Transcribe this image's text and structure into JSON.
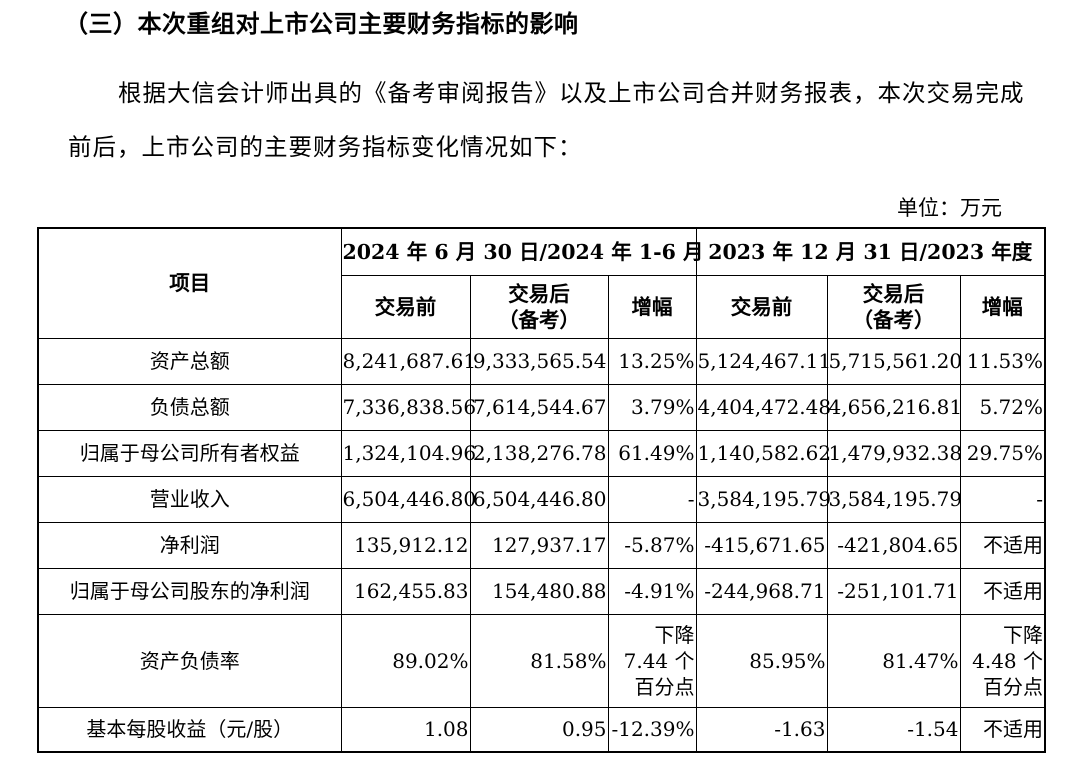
{
  "heading": "（三）本次重组对上市公司主要财务指标的影响",
  "paragraph": "根据大信会计师出具的《备考审阅报告》以及上市公司合并财务报表，本次交易完成前后，上市公司的主要财务指标变化情况如下：",
  "unit_label": "单位：万元",
  "table": {
    "item_header": "项目",
    "period_2024": "2024 年 6 月 30 日/2024 年 1-6 月",
    "period_2023": "2023 年 12 月 31 日/2023 年度",
    "col_before": "交易前",
    "col_after_l1": "交易后",
    "col_after_l2": "（备考）",
    "col_change": "增幅",
    "rows": [
      {
        "item": "资产总额",
        "b24": "8,241,687.61",
        "a24": "9,333,565.54",
        "g24": "13.25%",
        "b23": "5,124,467.11",
        "a23": "5,715,561.20",
        "g23": "11.53%"
      },
      {
        "item": "负债总额",
        "b24": "7,336,838.56",
        "a24": "7,614,544.67",
        "g24": "3.79%",
        "b23": "4,404,472.48",
        "a23": "4,656,216.81",
        "g23": "5.72%"
      },
      {
        "item": "归属于母公司所有者权益",
        "b24": "1,324,104.96",
        "a24": "2,138,276.78",
        "g24": "61.49%",
        "b23": "1,140,582.62",
        "a23": "1,479,932.38",
        "g23": "29.75%"
      },
      {
        "item": "营业收入",
        "b24": "6,504,446.80",
        "a24": "6,504,446.80",
        "g24": "-",
        "b23": "3,584,195.79",
        "a23": "3,584,195.79",
        "g23": "-"
      },
      {
        "item": "净利润",
        "b24": "135,912.12",
        "a24": "127,937.17",
        "g24": "-5.87%",
        "b23": "-415,671.65",
        "a23": "-421,804.65",
        "g23": "不适用"
      },
      {
        "item": "归属于母公司股东的净利润",
        "b24": "162,455.83",
        "a24": "154,480.88",
        "g24": "-4.91%",
        "b23": "-244,968.71",
        "a23": "-251,101.71",
        "g23": "不适用"
      },
      {
        "item": "资产负债率",
        "b24": "89.02%",
        "a24": "81.58%",
        "g24_l1": "下降",
        "g24_l2": "7.44 个",
        "g24_l3": "百分点",
        "b23": "85.95%",
        "a23": "81.47%",
        "g23_l1": "下降",
        "g23_l2": "4.48 个",
        "g23_l3": "百分点"
      },
      {
        "item": "基本每股收益（元/股）",
        "b24": "1.08",
        "a24": "0.95",
        "g24": "-12.39%",
        "b23": "-1.63",
        "a23": "-1.54",
        "g23": "不适用"
      }
    ]
  }
}
